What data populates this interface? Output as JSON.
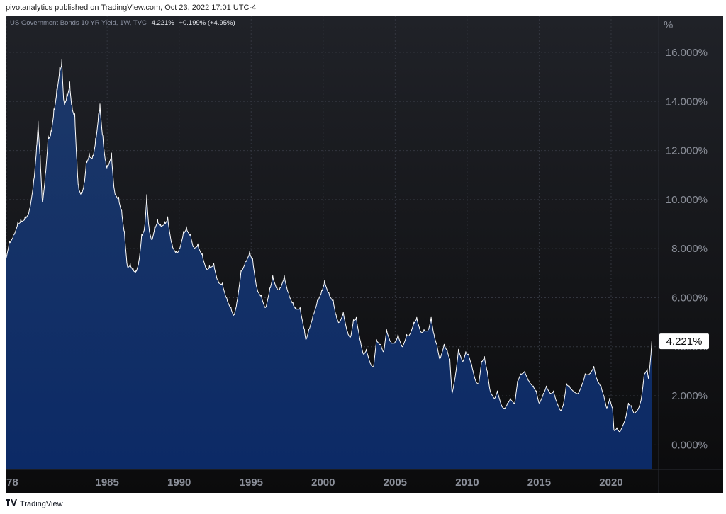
{
  "header": {
    "published_by": "pivotanalytics published on TradingView.com, Oct 23, 2022 17:01 UTC-4"
  },
  "legend": {
    "symbol": "US Government Bonds 10 YR Yield, 1W, TVC",
    "last": "4.221%",
    "change": "+0.199% (+4.95%)"
  },
  "colors": {
    "background_top": "#202228",
    "background_bottom": "#0b0b0c",
    "area_top": "#1c3868",
    "area_bottom": "#0c2a66",
    "line": "#ffffff",
    "grid": "#33363f",
    "axis_text": "#8b8f99",
    "price_label_bg": "#ffffff",
    "price_label_text": "#0b0b0c"
  },
  "footer": {
    "logo_icon": "tradingview-logo-icon",
    "brand": "TradingView"
  },
  "chart_data": {
    "type": "area",
    "title": "",
    "xlabel": "",
    "ylabel": "%",
    "y_axis_unit_label": "%",
    "y_ticks": [
      "16.000%",
      "14.000%",
      "12.000%",
      "10.000%",
      "8.000%",
      "6.000%",
      "4.000%",
      "2.000%",
      "0.000%"
    ],
    "y_tick_values": [
      16,
      14,
      12,
      10,
      8,
      6,
      4,
      2,
      0
    ],
    "x_ticks": [
      "78",
      "1985",
      "1990",
      "1995",
      "2000",
      "2005",
      "2010",
      "2015",
      "2020"
    ],
    "x_tick_values": [
      1978.0,
      1985.0,
      1990.0,
      1995.0,
      2000.0,
      2005.0,
      2010.0,
      2015.0,
      2020.0
    ],
    "xlim": [
      1977.95,
      2023.3
    ],
    "ylim": [
      -1.0,
      17.5
    ],
    "grid": true,
    "current_value_label": "4.221%",
    "series": [
      {
        "values": [
          [
            1977.95,
            7.6
          ],
          [
            1978.2,
            8.3
          ],
          [
            1978.5,
            8.6
          ],
          [
            1978.8,
            9.1
          ],
          [
            1979.0,
            9.2
          ],
          [
            1979.3,
            9.3
          ],
          [
            1979.6,
            9.6
          ],
          [
            1979.9,
            10.8
          ],
          [
            1980.1,
            12.2
          ],
          [
            1980.2,
            13.2
          ],
          [
            1980.35,
            11.8
          ],
          [
            1980.5,
            9.9
          ],
          [
            1980.7,
            11.0
          ],
          [
            1980.9,
            12.6
          ],
          [
            1981.1,
            12.8
          ],
          [
            1981.3,
            13.7
          ],
          [
            1981.5,
            14.5
          ],
          [
            1981.7,
            15.4
          ],
          [
            1981.85,
            15.7
          ],
          [
            1982.0,
            14.0
          ],
          [
            1982.2,
            14.3
          ],
          [
            1982.4,
            14.8
          ],
          [
            1982.55,
            13.9
          ],
          [
            1982.75,
            13.5
          ],
          [
            1982.9,
            11.6
          ],
          [
            1983.0,
            10.6
          ],
          [
            1983.2,
            10.3
          ],
          [
            1983.4,
            10.7
          ],
          [
            1983.55,
            11.6
          ],
          [
            1983.75,
            11.9
          ],
          [
            1984.0,
            11.8
          ],
          [
            1984.2,
            12.5
          ],
          [
            1984.4,
            13.5
          ],
          [
            1984.5,
            13.9
          ],
          [
            1984.7,
            12.6
          ],
          [
            1984.9,
            11.6
          ],
          [
            1985.0,
            11.4
          ],
          [
            1985.3,
            11.9
          ],
          [
            1985.5,
            10.4
          ],
          [
            1985.8,
            10.1
          ],
          [
            1986.0,
            9.6
          ],
          [
            1986.2,
            8.7
          ],
          [
            1986.4,
            7.3
          ],
          [
            1986.6,
            7.4
          ],
          [
            1986.8,
            7.2
          ],
          [
            1987.0,
            7.1
          ],
          [
            1987.2,
            7.5
          ],
          [
            1987.4,
            8.6
          ],
          [
            1987.6,
            8.9
          ],
          [
            1987.75,
            10.2
          ],
          [
            1987.9,
            8.9
          ],
          [
            1988.1,
            8.4
          ],
          [
            1988.3,
            8.9
          ],
          [
            1988.5,
            9.2
          ],
          [
            1988.7,
            9.0
          ],
          [
            1989.0,
            9.1
          ],
          [
            1989.2,
            9.3
          ],
          [
            1989.5,
            8.2
          ],
          [
            1989.8,
            7.9
          ],
          [
            1990.0,
            8.0
          ],
          [
            1990.3,
            8.7
          ],
          [
            1990.5,
            8.9
          ],
          [
            1990.8,
            8.6
          ],
          [
            1991.0,
            8.1
          ],
          [
            1991.3,
            8.2
          ],
          [
            1991.6,
            7.8
          ],
          [
            1991.9,
            7.2
          ],
          [
            1992.1,
            7.3
          ],
          [
            1992.4,
            7.4
          ],
          [
            1992.7,
            6.7
          ],
          [
            1993.0,
            6.6
          ],
          [
            1993.3,
            6.0
          ],
          [
            1993.6,
            5.6
          ],
          [
            1993.8,
            5.3
          ],
          [
            1994.0,
            5.8
          ],
          [
            1994.3,
            7.1
          ],
          [
            1994.6,
            7.5
          ],
          [
            1994.9,
            7.9
          ],
          [
            1995.1,
            7.6
          ],
          [
            1995.4,
            6.4
          ],
          [
            1995.7,
            6.1
          ],
          [
            1996.0,
            5.6
          ],
          [
            1996.3,
            6.4
          ],
          [
            1996.5,
            6.9
          ],
          [
            1996.8,
            6.4
          ],
          [
            1997.0,
            6.4
          ],
          [
            1997.3,
            6.9
          ],
          [
            1997.6,
            6.2
          ],
          [
            1997.9,
            5.8
          ],
          [
            1998.1,
            5.6
          ],
          [
            1998.4,
            5.6
          ],
          [
            1998.7,
            4.7
          ],
          [
            1998.8,
            4.3
          ],
          [
            1999.0,
            4.7
          ],
          [
            1999.3,
            5.3
          ],
          [
            1999.6,
            5.9
          ],
          [
            1999.9,
            6.3
          ],
          [
            2000.1,
            6.7
          ],
          [
            2000.4,
            6.2
          ],
          [
            2000.7,
            5.9
          ],
          [
            2000.9,
            5.3
          ],
          [
            2001.1,
            5.0
          ],
          [
            2001.4,
            5.4
          ],
          [
            2001.7,
            4.6
          ],
          [
            2001.9,
            4.4
          ],
          [
            2002.1,
            5.1
          ],
          [
            2002.3,
            5.2
          ],
          [
            2002.6,
            4.2
          ],
          [
            2002.8,
            3.7
          ],
          [
            2003.0,
            3.9
          ],
          [
            2003.3,
            3.3
          ],
          [
            2003.5,
            3.2
          ],
          [
            2003.7,
            4.3
          ],
          [
            2004.0,
            4.1
          ],
          [
            2004.2,
            3.8
          ],
          [
            2004.4,
            4.7
          ],
          [
            2004.7,
            4.2
          ],
          [
            2005.0,
            4.2
          ],
          [
            2005.2,
            4.5
          ],
          [
            2005.5,
            4.0
          ],
          [
            2005.8,
            4.5
          ],
          [
            2006.0,
            4.5
          ],
          [
            2006.3,
            5.0
          ],
          [
            2006.5,
            5.2
          ],
          [
            2006.8,
            4.6
          ],
          [
            2007.0,
            4.7
          ],
          [
            2007.3,
            4.7
          ],
          [
            2007.5,
            5.2
          ],
          [
            2007.7,
            4.5
          ],
          [
            2007.9,
            4.1
          ],
          [
            2008.1,
            3.5
          ],
          [
            2008.4,
            4.1
          ],
          [
            2008.6,
            3.9
          ],
          [
            2008.8,
            3.5
          ],
          [
            2008.95,
            2.1
          ],
          [
            2009.2,
            2.9
          ],
          [
            2009.4,
            3.9
          ],
          [
            2009.7,
            3.4
          ],
          [
            2009.9,
            3.8
          ],
          [
            2010.1,
            3.7
          ],
          [
            2010.3,
            3.3
          ],
          [
            2010.6,
            2.6
          ],
          [
            2010.8,
            2.5
          ],
          [
            2011.0,
            3.4
          ],
          [
            2011.2,
            3.6
          ],
          [
            2011.4,
            3.0
          ],
          [
            2011.6,
            2.2
          ],
          [
            2011.9,
            1.9
          ],
          [
            2012.1,
            2.2
          ],
          [
            2012.4,
            1.6
          ],
          [
            2012.6,
            1.5
          ],
          [
            2012.8,
            1.7
          ],
          [
            2013.0,
            1.9
          ],
          [
            2013.3,
            1.7
          ],
          [
            2013.5,
            2.6
          ],
          [
            2013.7,
            2.9
          ],
          [
            2014.0,
            3.0
          ],
          [
            2014.3,
            2.6
          ],
          [
            2014.6,
            2.4
          ],
          [
            2014.8,
            2.2
          ],
          [
            2015.0,
            1.7
          ],
          [
            2015.3,
            2.1
          ],
          [
            2015.5,
            2.4
          ],
          [
            2015.8,
            2.1
          ],
          [
            2016.0,
            2.2
          ],
          [
            2016.2,
            1.8
          ],
          [
            2016.5,
            1.4
          ],
          [
            2016.7,
            1.7
          ],
          [
            2016.9,
            2.5
          ],
          [
            2017.1,
            2.4
          ],
          [
            2017.4,
            2.2
          ],
          [
            2017.7,
            2.1
          ],
          [
            2018.0,
            2.5
          ],
          [
            2018.2,
            2.9
          ],
          [
            2018.5,
            2.9
          ],
          [
            2018.8,
            3.2
          ],
          [
            2019.0,
            2.7
          ],
          [
            2019.3,
            2.4
          ],
          [
            2019.5,
            2.0
          ],
          [
            2019.7,
            1.5
          ],
          [
            2019.9,
            1.9
          ],
          [
            2020.1,
            1.5
          ],
          [
            2020.2,
            0.6
          ],
          [
            2020.4,
            0.7
          ],
          [
            2020.6,
            0.55
          ],
          [
            2020.8,
            0.8
          ],
          [
            2021.0,
            1.1
          ],
          [
            2021.2,
            1.7
          ],
          [
            2021.4,
            1.6
          ],
          [
            2021.6,
            1.3
          ],
          [
            2021.9,
            1.5
          ],
          [
            2022.1,
            1.9
          ],
          [
            2022.3,
            2.9
          ],
          [
            2022.5,
            3.1
          ],
          [
            2022.6,
            2.7
          ],
          [
            2022.75,
            3.6
          ],
          [
            2022.82,
            4.221
          ]
        ]
      }
    ]
  }
}
